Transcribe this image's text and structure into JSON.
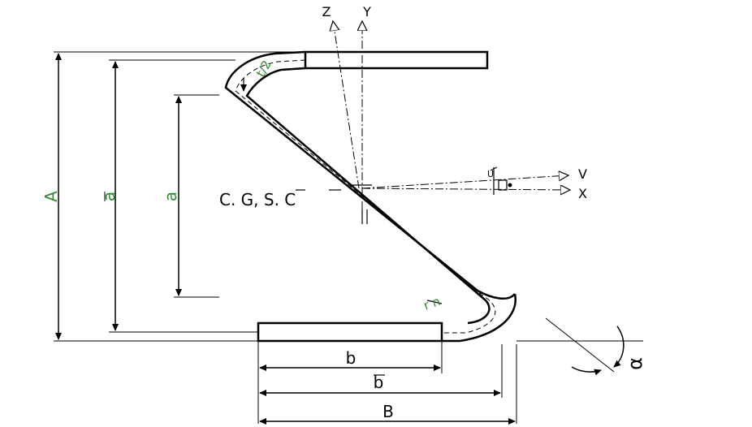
{
  "diagram": {
    "labels": {
      "dim_A": "A",
      "dim_a_bar": "a",
      "dim_a": "a",
      "dim_b": "b",
      "dim_b_bar": "b",
      "dim_B": "B",
      "center": "C. G, S. C",
      "axis_z": "Z",
      "axis_y": "Y",
      "axis_v": "V",
      "axis_x": "X",
      "axis_u": "U",
      "t2": "t/2",
      "rn": "r n",
      "alpha": "α"
    },
    "colors": {
      "ink": "#000000",
      "dimension_label": "#2e8b2e"
    }
  }
}
